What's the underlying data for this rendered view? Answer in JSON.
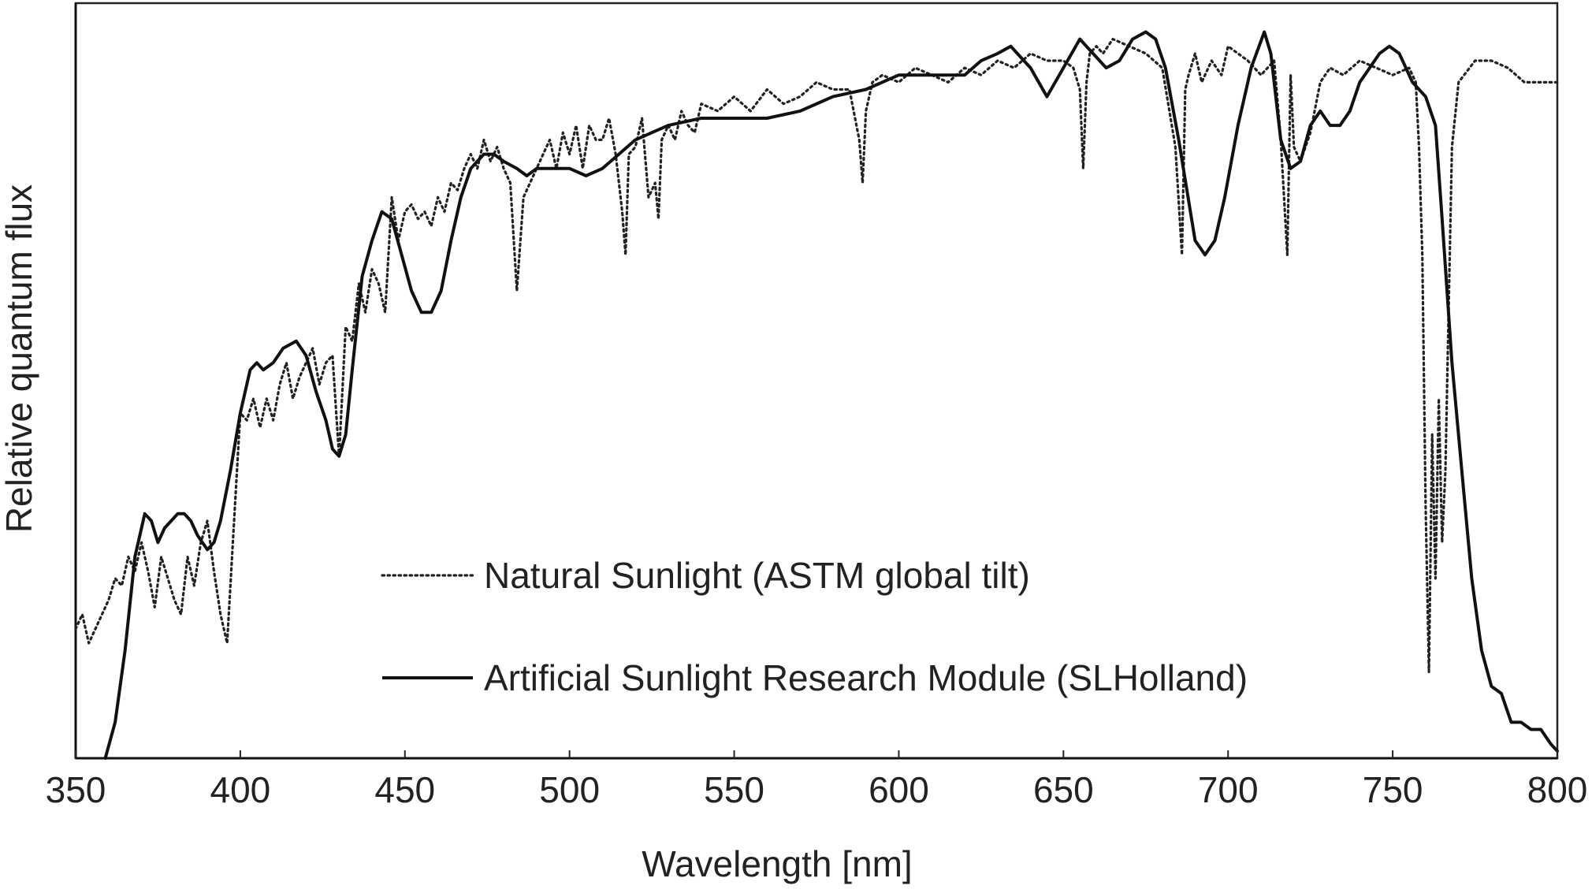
{
  "chart_data": {
    "type": "line",
    "title": "",
    "xlabel": "Wavelength [nm]",
    "ylabel": "Relative quantum flux",
    "xlim": [
      350,
      800
    ],
    "ylim": [
      0,
      1
    ],
    "x_ticks": [
      "350",
      "400",
      "450",
      "500",
      "550",
      "600",
      "650",
      "700",
      "750",
      "800"
    ],
    "y_ticks": [],
    "grid": false,
    "legend": {
      "position": "center-left inside plot"
    },
    "series": [
      {
        "name": "Natural Sunlight (ASTM global tilt)",
        "style": "dotted",
        "color": "#222222",
        "x": [
          350,
          352,
          354,
          356,
          358,
          360,
          362,
          364,
          366,
          368,
          370,
          372,
          374,
          376,
          378,
          380,
          382,
          384,
          386,
          388,
          390,
          392,
          394,
          396,
          398,
          400,
          402,
          404,
          406,
          408,
          410,
          412,
          414,
          416,
          418,
          420,
          422,
          424,
          426,
          428,
          430,
          432,
          434,
          436,
          438,
          440,
          442,
          444,
          446,
          448,
          450,
          452,
          454,
          456,
          458,
          460,
          462,
          464,
          466,
          468,
          470,
          472,
          474,
          476,
          478,
          480,
          482,
          484,
          486,
          488,
          490,
          492,
          494,
          496,
          498,
          500,
          502,
          504,
          506,
          508,
          510,
          512,
          514,
          516,
          517,
          518,
          520,
          522,
          524,
          526,
          527,
          528,
          530,
          532,
          534,
          536,
          538,
          540,
          545,
          550,
          555,
          560,
          565,
          570,
          575,
          580,
          585,
          588,
          589,
          590,
          592,
          595,
          600,
          605,
          610,
          615,
          620,
          625,
          630,
          635,
          640,
          645,
          650,
          653,
          655,
          656,
          657,
          658,
          660,
          662,
          665,
          670,
          675,
          680,
          684,
          686,
          687,
          688,
          690,
          692,
          695,
          698,
          700,
          703,
          706,
          710,
          714,
          716,
          718,
          719,
          720,
          722,
          725,
          728,
          731,
          735,
          740,
          745,
          750,
          755,
          757,
          758,
          759,
          760,
          761,
          762,
          763,
          764,
          765,
          766,
          768,
          770,
          775,
          780,
          785,
          790,
          795,
          800
        ],
        "y": [
          0.18,
          0.2,
          0.16,
          0.18,
          0.2,
          0.22,
          0.25,
          0.24,
          0.28,
          0.26,
          0.3,
          0.26,
          0.21,
          0.28,
          0.25,
          0.22,
          0.2,
          0.28,
          0.24,
          0.3,
          0.33,
          0.26,
          0.2,
          0.16,
          0.32,
          0.48,
          0.47,
          0.5,
          0.46,
          0.5,
          0.47,
          0.52,
          0.55,
          0.5,
          0.53,
          0.55,
          0.57,
          0.52,
          0.55,
          0.56,
          0.42,
          0.6,
          0.58,
          0.66,
          0.62,
          0.68,
          0.66,
          0.62,
          0.78,
          0.72,
          0.76,
          0.77,
          0.75,
          0.76,
          0.74,
          0.78,
          0.76,
          0.8,
          0.79,
          0.82,
          0.84,
          0.82,
          0.86,
          0.83,
          0.85,
          0.82,
          0.8,
          0.65,
          0.78,
          0.8,
          0.82,
          0.84,
          0.86,
          0.82,
          0.87,
          0.84,
          0.88,
          0.82,
          0.88,
          0.86,
          0.86,
          0.89,
          0.84,
          0.76,
          0.7,
          0.84,
          0.85,
          0.89,
          0.78,
          0.8,
          0.75,
          0.86,
          0.88,
          0.86,
          0.9,
          0.88,
          0.87,
          0.91,
          0.9,
          0.92,
          0.9,
          0.93,
          0.91,
          0.92,
          0.94,
          0.93,
          0.93,
          0.86,
          0.8,
          0.9,
          0.94,
          0.95,
          0.94,
          0.96,
          0.95,
          0.94,
          0.96,
          0.95,
          0.97,
          0.96,
          0.98,
          0.97,
          0.97,
          0.96,
          0.93,
          0.82,
          0.94,
          0.98,
          0.99,
          0.98,
          1.0,
          0.99,
          0.98,
          0.96,
          0.85,
          0.7,
          0.93,
          0.95,
          0.98,
          0.94,
          0.97,
          0.95,
          0.99,
          0.98,
          0.97,
          0.95,
          0.97,
          0.86,
          0.7,
          0.95,
          0.85,
          0.83,
          0.87,
          0.94,
          0.96,
          0.95,
          0.97,
          0.96,
          0.95,
          0.96,
          0.94,
          0.85,
          0.7,
          0.35,
          0.12,
          0.45,
          0.25,
          0.5,
          0.3,
          0.4,
          0.85,
          0.94,
          0.97,
          0.97,
          0.96,
          0.94,
          0.94,
          0.94
        ]
      },
      {
        "name": "Artificial Sunlight Research Module (SLHolland)",
        "style": "solid",
        "color": "#111111",
        "x": [
          359,
          362,
          365,
          368,
          371,
          373,
          375,
          377,
          379,
          381,
          383,
          385,
          387,
          390,
          392,
          394,
          397,
          400,
          403,
          405,
          407,
          410,
          413,
          417,
          420,
          423,
          426,
          428,
          430,
          432,
          434,
          437,
          440,
          443,
          446,
          449,
          452,
          455,
          458,
          461,
          464,
          467,
          470,
          474,
          477,
          480,
          484,
          487,
          490,
          493,
          496,
          500,
          505,
          510,
          515,
          520,
          530,
          540,
          550,
          560,
          570,
          580,
          590,
          600,
          610,
          620,
          625,
          630,
          634,
          636,
          640,
          645,
          650,
          655,
          659,
          663,
          667,
          671,
          675,
          678,
          681,
          685,
          690,
          693,
          696,
          699,
          703,
          707,
          711,
          713,
          716,
          719,
          722,
          725,
          728,
          731,
          734,
          737,
          740,
          743,
          746,
          749,
          752,
          756,
          760,
          763,
          765,
          768,
          771,
          774,
          777,
          780,
          783,
          786,
          789,
          792,
          795,
          798,
          800
        ],
        "y": [
          0.0,
          0.05,
          0.15,
          0.28,
          0.34,
          0.33,
          0.3,
          0.32,
          0.33,
          0.34,
          0.34,
          0.33,
          0.31,
          0.29,
          0.3,
          0.33,
          0.4,
          0.48,
          0.54,
          0.55,
          0.54,
          0.55,
          0.57,
          0.58,
          0.56,
          0.51,
          0.47,
          0.43,
          0.42,
          0.45,
          0.54,
          0.67,
          0.72,
          0.76,
          0.75,
          0.7,
          0.65,
          0.62,
          0.62,
          0.65,
          0.72,
          0.78,
          0.82,
          0.84,
          0.84,
          0.83,
          0.82,
          0.81,
          0.82,
          0.82,
          0.82,
          0.82,
          0.81,
          0.82,
          0.84,
          0.86,
          0.88,
          0.89,
          0.89,
          0.89,
          0.9,
          0.92,
          0.93,
          0.95,
          0.95,
          0.95,
          0.97,
          0.98,
          0.99,
          0.98,
          0.96,
          0.92,
          0.96,
          1.0,
          0.98,
          0.96,
          0.97,
          1.0,
          1.01,
          1.0,
          0.96,
          0.86,
          0.72,
          0.7,
          0.72,
          0.78,
          0.88,
          0.96,
          1.01,
          0.98,
          0.86,
          0.82,
          0.83,
          0.88,
          0.9,
          0.88,
          0.88,
          0.9,
          0.94,
          0.96,
          0.98,
          0.99,
          0.98,
          0.94,
          0.92,
          0.88,
          0.75,
          0.55,
          0.4,
          0.25,
          0.15,
          0.1,
          0.09,
          0.05,
          0.05,
          0.04,
          0.04,
          0.02,
          0.01
        ]
      }
    ]
  }
}
